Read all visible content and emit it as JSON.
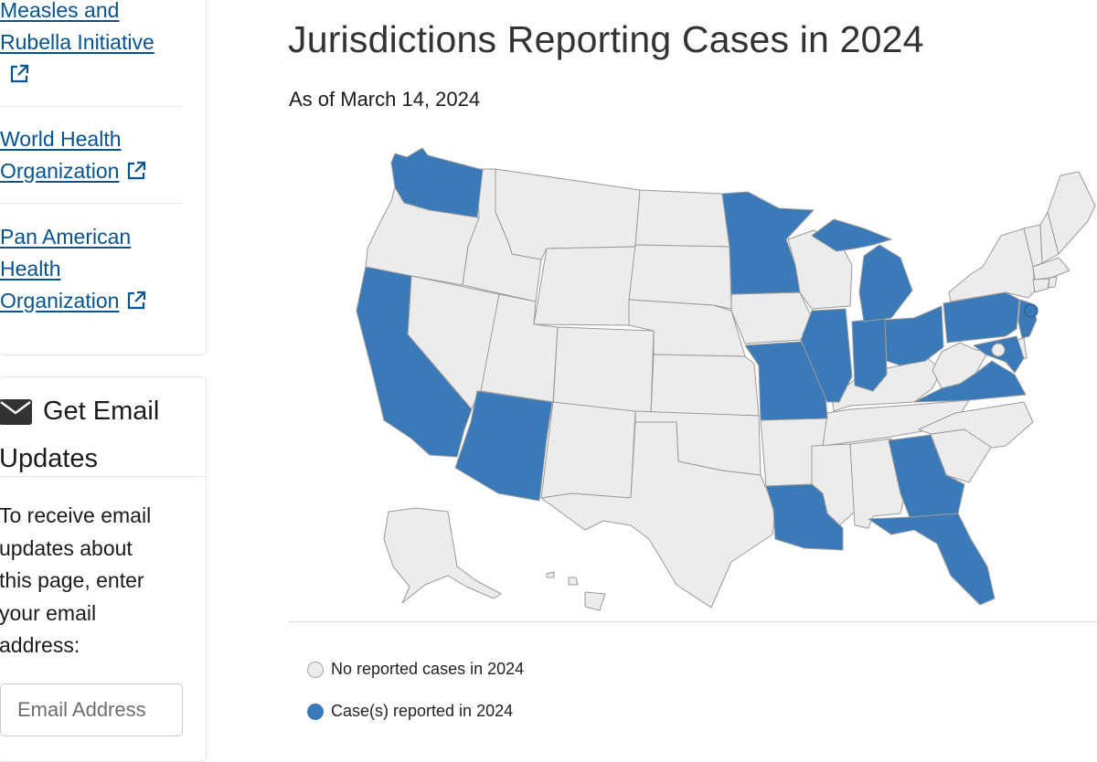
{
  "sidebar": {
    "links": [
      {
        "line1": "Measles and",
        "line2": "Rubella Initiative",
        "line3": ""
      },
      {
        "line1": "World Health",
        "line2": "Organization",
        "line3": ""
      },
      {
        "line1": "Pan American",
        "line2": "Health",
        "line3": "Organization"
      }
    ],
    "email": {
      "heading_line1": "Get Email",
      "heading_line2": "Updates",
      "description": [
        "To receive email",
        "updates about",
        "this page, enter",
        "your email",
        "address:"
      ],
      "input_placeholder": "Email Address"
    }
  },
  "main": {
    "title": "Jurisdictions Reporting Cases in 2024",
    "as_of": "As of March 14, 2024",
    "legend": [
      {
        "label": "No reported cases in 2024",
        "color": "#ececec"
      },
      {
        "label": "Case(s) reported in 2024",
        "color": "#3a7ab8"
      }
    ]
  },
  "map": {
    "reported_color": "#3a7ab8",
    "no_cases_color": "#ececec",
    "reported_jurisdictions": [
      "Washington",
      "California",
      "Arizona",
      "Minnesota",
      "Missouri",
      "Louisiana",
      "Illinois",
      "Indiana",
      "Michigan",
      "Ohio",
      "Georgia",
      "Florida",
      "Pennsylvania",
      "Virginia",
      "Maryland",
      "New Jersey",
      "New York City"
    ],
    "no_cases_jurisdictions": [
      "Oregon",
      "Idaho",
      "Montana",
      "Wyoming",
      "Nevada",
      "Utah",
      "Colorado",
      "New Mexico",
      "North Dakota",
      "South Dakota",
      "Nebraska",
      "Kansas",
      "Oklahoma",
      "Texas",
      "Iowa",
      "Arkansas",
      "Wisconsin",
      "Kentucky",
      "Tennessee",
      "Mississippi",
      "Alabama",
      "South Carolina",
      "North Carolina",
      "West Virginia",
      "New York",
      "Vermont",
      "New Hampshire",
      "Maine",
      "Massachusetts",
      "Connecticut",
      "Rhode Island",
      "Delaware",
      "District of Columbia",
      "Alaska",
      "Hawaii"
    ]
  }
}
